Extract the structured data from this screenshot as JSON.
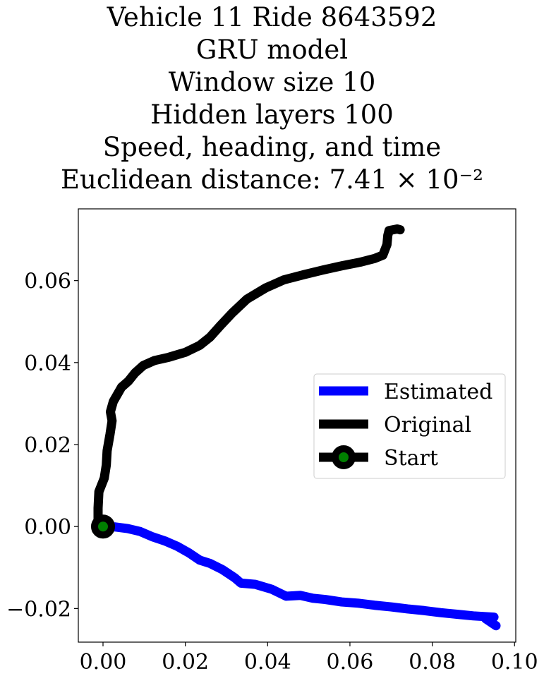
{
  "chart_data": {
    "type": "line",
    "title_lines": [
      "Vehicle 11 Ride 8643592",
      "GRU model",
      "Window size 10",
      "Hidden layers 100",
      "Speed, heading, and time",
      "Euclidean distance: 7.41 × 10⁻²"
    ],
    "xlabel": "",
    "ylabel": "",
    "xlim": [
      -0.006,
      0.1003
    ],
    "ylim": [
      -0.0282,
      0.0775
    ],
    "xticks": [
      0.0,
      0.02,
      0.04,
      0.06,
      0.08,
      0.1
    ],
    "xtick_labels": [
      "0.00",
      "0.02",
      "0.04",
      "0.06",
      "0.08",
      "0.10"
    ],
    "yticks": [
      -0.02,
      0.0,
      0.02,
      0.04,
      0.06
    ],
    "ytick_labels": [
      "−0.02",
      "0.00",
      "0.02",
      "0.04",
      "0.06"
    ],
    "grid": false,
    "legend_position": "center-right",
    "series": [
      {
        "name": "Estimated",
        "color": "#0000ff",
        "points": [
          [
            0.0,
            0.0
          ],
          [
            0.003,
            -0.0001
          ],
          [
            0.006,
            -0.0005
          ],
          [
            0.009,
            -0.0012
          ],
          [
            0.012,
            -0.0025
          ],
          [
            0.015,
            -0.0035
          ],
          [
            0.018,
            -0.0048
          ],
          [
            0.021,
            -0.0065
          ],
          [
            0.0235,
            -0.0082
          ],
          [
            0.026,
            -0.009
          ],
          [
            0.029,
            -0.0105
          ],
          [
            0.032,
            -0.0125
          ],
          [
            0.0335,
            -0.0138
          ],
          [
            0.037,
            -0.0141
          ],
          [
            0.041,
            -0.0153
          ],
          [
            0.0445,
            -0.017
          ],
          [
            0.048,
            -0.0168
          ],
          [
            0.051,
            -0.0175
          ],
          [
            0.054,
            -0.0178
          ],
          [
            0.058,
            -0.0184
          ],
          [
            0.062,
            -0.0187
          ],
          [
            0.066,
            -0.0192
          ],
          [
            0.07,
            -0.0196
          ],
          [
            0.074,
            -0.0201
          ],
          [
            0.078,
            -0.0205
          ],
          [
            0.082,
            -0.021
          ],
          [
            0.086,
            -0.0214
          ],
          [
            0.09,
            -0.0218
          ],
          [
            0.095,
            -0.0221
          ],
          [
            0.093,
            -0.0225
          ],
          [
            0.0955,
            -0.0242
          ]
        ]
      },
      {
        "name": "Original",
        "color": "#000000",
        "points": [
          [
            0.0,
            0.0
          ],
          [
            -0.0012,
            0.0015
          ],
          [
            -0.0012,
            0.0045
          ],
          [
            -0.001,
            0.0085
          ],
          [
            0.0003,
            0.0118
          ],
          [
            0.0008,
            0.015
          ],
          [
            0.001,
            0.0185
          ],
          [
            0.0017,
            0.0225
          ],
          [
            0.0022,
            0.0258
          ],
          [
            0.0018,
            0.028
          ],
          [
            0.0025,
            0.0305
          ],
          [
            0.0045,
            0.034
          ],
          [
            0.0062,
            0.0355
          ],
          [
            0.0078,
            0.0375
          ],
          [
            0.0098,
            0.0393
          ],
          [
            0.0125,
            0.0405
          ],
          [
            0.016,
            0.0413
          ],
          [
            0.02,
            0.0425
          ],
          [
            0.0235,
            0.0442
          ],
          [
            0.026,
            0.0462
          ],
          [
            0.0285,
            0.049
          ],
          [
            0.0315,
            0.0522
          ],
          [
            0.035,
            0.0555
          ],
          [
            0.0395,
            0.0582
          ],
          [
            0.044,
            0.0602
          ],
          [
            0.049,
            0.0615
          ],
          [
            0.0535,
            0.0626
          ],
          [
            0.058,
            0.0636
          ],
          [
            0.0625,
            0.0645
          ],
          [
            0.066,
            0.0654
          ],
          [
            0.068,
            0.0662
          ],
          [
            0.069,
            0.0688
          ],
          [
            0.0692,
            0.071
          ],
          [
            0.0695,
            0.0722
          ],
          [
            0.0715,
            0.0726
          ],
          [
            0.0722,
            0.0724
          ]
        ]
      },
      {
        "name": "Start",
        "marker_face_color": "#008000",
        "marker_edge_color": "#000000",
        "points": [
          [
            0.0,
            0.0
          ]
        ]
      }
    ]
  }
}
